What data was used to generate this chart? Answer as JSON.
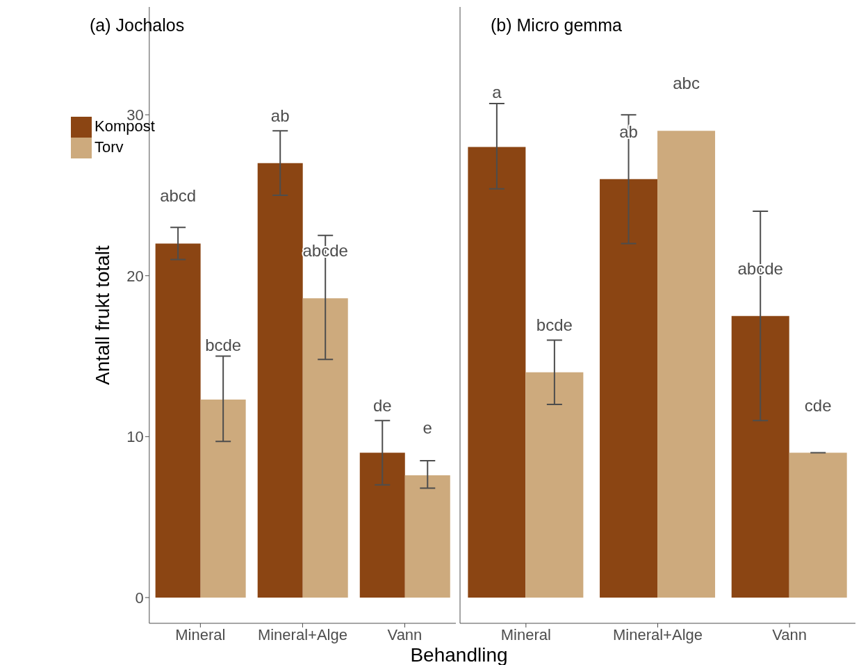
{
  "chart_data": [
    {
      "type": "bar",
      "title": "(a) Jochalos",
      "xlabel": "Behandling",
      "ylabel": "Antall frukt totalt",
      "categories": [
        "Mineral",
        "Mineral+Alge",
        "Vann"
      ],
      "ylim": [
        -1.6,
        36.7
      ],
      "yticks": [
        0,
        10,
        20,
        30
      ],
      "grid": false,
      "legend": "top left",
      "series": [
        {
          "name": "Kompost",
          "color": "#8b4513",
          "values": [
            22,
            27,
            9
          ],
          "errors": [
            [
              21,
              23
            ],
            [
              25,
              29
            ],
            [
              7,
              11
            ]
          ],
          "value_labels": [
            "abcd",
            "ab",
            "de"
          ]
        },
        {
          "name": "Torv",
          "color": "#cdaa7d",
          "values": [
            12.3,
            18.6,
            7.6
          ],
          "errors": [
            [
              9.7,
              15
            ],
            [
              14.8,
              22.5
            ],
            [
              6.8,
              8.5
            ]
          ],
          "value_labels": [
            "bcde",
            "abcde",
            "e"
          ]
        }
      ]
    },
    {
      "type": "bar",
      "title": "(b) Micro gemma",
      "categories": [
        "Mineral",
        "Mineral+Alge",
        "Vann"
      ],
      "ylim": [
        -1.6,
        36.7
      ],
      "yticks": [
        0,
        10,
        20,
        30
      ],
      "grid": false,
      "tick_labels": "x",
      "series": [
        {
          "color": "#8b4513",
          "values": [
            28,
            26,
            17.5
          ],
          "errors": [
            [
              25.4,
              30.7
            ],
            [
              22,
              30
            ],
            [
              11,
              24
            ]
          ],
          "value_labels": [
            "a",
            "ab",
            "abcde"
          ]
        },
        {
          "color": "#cdaa7d",
          "values": [
            14,
            29,
            9
          ],
          "errors": [
            [
              12,
              16
            ],
            null,
            [
              9,
              9
            ]
          ],
          "value_labels": [
            "bcde",
            "abc",
            "cde"
          ]
        }
      ]
    }
  ]
}
